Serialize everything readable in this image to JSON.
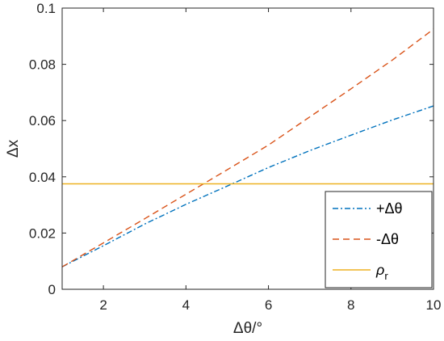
{
  "chart_data": {
    "type": "line",
    "xlabel": "Δθ/°",
    "ylabel": "Δx",
    "xlim": [
      1,
      10
    ],
    "ylim": [
      0,
      0.1
    ],
    "xticks": [
      2,
      4,
      6,
      8,
      10
    ],
    "yticks": [
      0,
      0.02,
      0.04,
      0.06,
      0.08,
      0.1
    ],
    "xtick_labels": [
      "2",
      "4",
      "6",
      "8",
      "10"
    ],
    "ytick_labels": [
      "0",
      "0.02",
      "0.04",
      "0.06",
      "0.08",
      "0.1"
    ],
    "grid": false,
    "legend_position": "bottom-right",
    "series": [
      {
        "name": "+Δθ",
        "color": "#0072BD",
        "dash": "dashdot",
        "x": [
          1,
          2,
          3,
          4,
          5,
          6,
          7,
          8,
          9,
          10
        ],
        "y": [
          0.008,
          0.0155,
          0.0232,
          0.0302,
          0.0367,
          0.0433,
          0.0493,
          0.0548,
          0.0602,
          0.0652
        ]
      },
      {
        "name": "-Δθ",
        "color": "#D95319",
        "dash": "dashed",
        "x": [
          1,
          2,
          3,
          4,
          5,
          6,
          7,
          8,
          9,
          10
        ],
        "y": [
          0.008,
          0.0165,
          0.0251,
          0.0338,
          0.0425,
          0.0513,
          0.0613,
          0.0713,
          0.0815,
          0.0925
        ]
      },
      {
        "name": "ρ_r",
        "label_main": "ρ",
        "label_sub": "r",
        "color": "#EDB120",
        "dash": "solid",
        "x": [
          1,
          10
        ],
        "y": [
          0.0375,
          0.0375
        ]
      }
    ]
  }
}
